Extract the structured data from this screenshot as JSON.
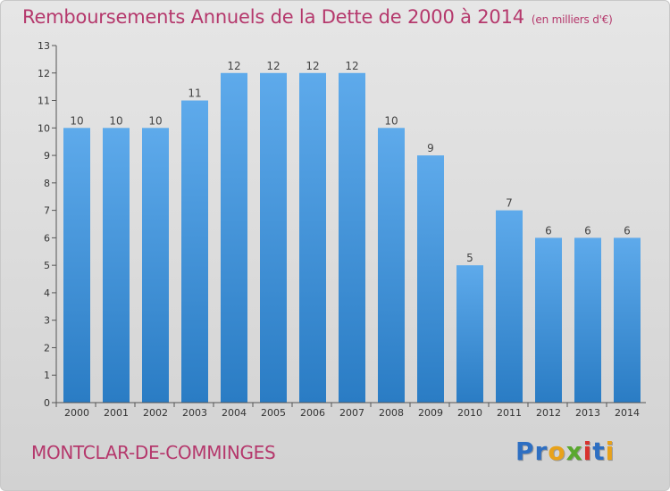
{
  "chart_data": {
    "type": "bar",
    "title": "Remboursements Annuels de la Dette de 2000 à 2014",
    "subtitle": "(en milliers d'€)",
    "categories": [
      "2000",
      "2001",
      "2002",
      "2003",
      "2004",
      "2005",
      "2006",
      "2007",
      "2008",
      "2009",
      "2010",
      "2011",
      "2012",
      "2013",
      "2014"
    ],
    "values": [
      10,
      10,
      10,
      11,
      12,
      12,
      12,
      12,
      10,
      9,
      5,
      7,
      6,
      6,
      6
    ],
    "y_ticks": [
      0,
      1,
      2,
      3,
      4,
      5,
      6,
      7,
      8,
      9,
      10,
      11,
      12,
      13
    ],
    "ylim": [
      0,
      13
    ],
    "xlabel": "",
    "ylabel": "",
    "grid": false,
    "bar_color": "#3d8fd6",
    "axis_color": "#555555"
  },
  "footer": {
    "place": "MONTCLAR-DE-COMMINGES",
    "logo_letters": [
      {
        "char": "P",
        "color": "#2e6fc2"
      },
      {
        "char": "r",
        "color": "#2e6fc2"
      },
      {
        "char": "o",
        "color": "#e8a21a"
      },
      {
        "char": "x",
        "color": "#5aa82e"
      },
      {
        "char": "i",
        "color": "#d8322e"
      },
      {
        "char": "t",
        "color": "#2e6fc2"
      },
      {
        "char": "i",
        "color": "#e8a21a"
      }
    ]
  }
}
